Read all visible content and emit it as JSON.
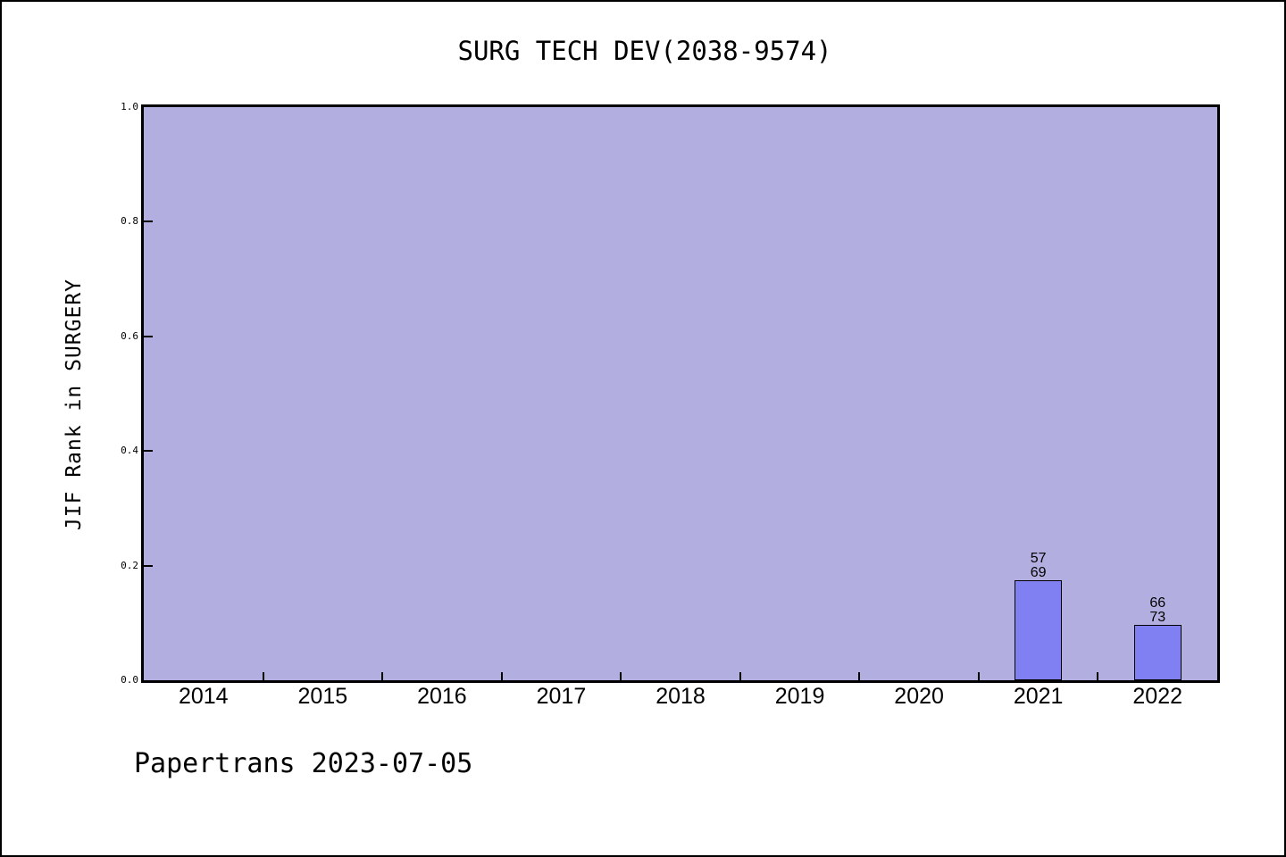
{
  "chart_data": {
    "type": "bar",
    "title": "SURG TECH DEV(2038-9574)",
    "ylabel": "JIF Rank in SURGERY",
    "xlabel": "",
    "footer": "Papertrans 2023-07-05",
    "categories": [
      "2014",
      "2015",
      "2016",
      "2017",
      "2018",
      "2019",
      "2020",
      "2021",
      "2022"
    ],
    "values": [
      null,
      null,
      null,
      null,
      null,
      null,
      null,
      0.174,
      0.096
    ],
    "bars": [
      {
        "category": "2021",
        "value": 0.174,
        "label_lines": [
          "57",
          "69"
        ]
      },
      {
        "category": "2022",
        "value": 0.096,
        "label_lines": [
          "66",
          "73"
        ]
      }
    ],
    "ylim": [
      0.0,
      1.0
    ],
    "yticks": [
      {
        "value": 0.0,
        "label": "0.0"
      },
      {
        "value": 0.2,
        "label": "0.2"
      },
      {
        "value": 0.4,
        "label": "0.4"
      },
      {
        "value": 0.6,
        "label": "0.6"
      },
      {
        "value": 0.8,
        "label": "0.8"
      },
      {
        "value": 1.0,
        "label": "1.0"
      }
    ],
    "grid": false,
    "legend": null,
    "bar_width_fraction": 0.4,
    "tick_direction": "in",
    "colors": {
      "page_background": "#ffffff",
      "page_border": "#000000",
      "plot_background": "#b3aee0",
      "bar_fill": "#8080f2",
      "bar_edge": "#000000",
      "axis": "#000000",
      "text": "#000000"
    }
  }
}
